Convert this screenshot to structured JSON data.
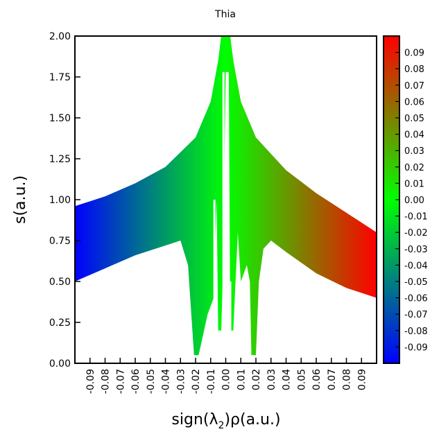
{
  "chart_data": {
    "type": "scatter",
    "title": "Thia",
    "xlabel_prefix": "sign(λ",
    "xlabel_sub": "2",
    "xlabel_suffix": ")ρ(a.u.)",
    "ylabel": "s(a.u.)",
    "xlim": [
      -0.1,
      0.1
    ],
    "ylim": [
      0.0,
      2.0
    ],
    "xticks": [
      "-0.09",
      "-0.08",
      "-0.07",
      "-0.06",
      "-0.05",
      "-0.04",
      "-0.03",
      "-0.02",
      "-0.01",
      "0.00",
      "0.01",
      "0.02",
      "0.03",
      "0.04",
      "0.05",
      "0.06",
      "0.07",
      "0.08",
      "0.09"
    ],
    "yticks": [
      "0.00",
      "0.25",
      "0.50",
      "0.75",
      "1.00",
      "1.25",
      "1.50",
      "1.75",
      "2.00"
    ],
    "colorbar": {
      "range": [
        -0.1,
        0.1
      ],
      "colors": {
        "low": "#0000ff",
        "mid": "#00ff00",
        "high": "#ff0000"
      },
      "ticks": [
        "0.09",
        "0.08",
        "0.07",
        "0.06",
        "0.05",
        "0.04",
        "0.03",
        "0.02",
        "0.01",
        "0.00",
        "-0.01",
        "-0.02",
        "-0.03",
        "-0.04",
        "-0.05",
        "-0.06",
        "-0.07",
        "-0.08",
        "-0.09"
      ]
    },
    "region": {
      "upper_envelope": [
        [
          -0.1,
          0.96
        ],
        [
          -0.08,
          1.02
        ],
        [
          -0.06,
          1.1
        ],
        [
          -0.04,
          1.2
        ],
        [
          -0.02,
          1.38
        ],
        [
          -0.01,
          1.6
        ],
        [
          -0.005,
          1.85
        ],
        [
          -0.003,
          2.0
        ],
        [
          0.003,
          2.0
        ],
        [
          0.005,
          1.85
        ],
        [
          0.01,
          1.6
        ],
        [
          0.02,
          1.38
        ],
        [
          0.04,
          1.18
        ],
        [
          0.06,
          1.04
        ],
        [
          0.08,
          0.92
        ],
        [
          0.1,
          0.8
        ]
      ],
      "lower_envelope_right": [
        [
          0.1,
          0.4
        ],
        [
          0.08,
          0.46
        ],
        [
          0.06,
          0.55
        ],
        [
          0.04,
          0.68
        ],
        [
          0.03,
          0.75
        ],
        [
          0.025,
          0.7
        ],
        [
          0.022,
          0.5
        ],
        [
          0.02,
          0.05
        ],
        [
          0.017,
          0.05
        ],
        [
          0.016,
          0.5
        ],
        [
          0.014,
          0.6
        ],
        [
          0.01,
          0.5
        ],
        [
          0.008,
          0.8
        ],
        [
          0.005,
          0.2
        ],
        [
          0.003,
          0.2
        ],
        [
          0.002,
          1.78
        ],
        [
          0.0,
          1.78
        ],
        [
          -0.002,
          0.5
        ],
        [
          -0.003,
          0.2
        ],
        [
          -0.005,
          0.2
        ],
        [
          -0.006,
          1.0
        ],
        [
          -0.008,
          0.4
        ],
        [
          -0.012,
          0.3
        ],
        [
          -0.018,
          0.05
        ],
        [
          -0.021,
          0.05
        ],
        [
          -0.025,
          0.6
        ],
        [
          -0.03,
          0.75
        ],
        [
          -0.04,
          0.72
        ],
        [
          -0.06,
          0.66
        ],
        [
          -0.08,
          0.58
        ],
        [
          -0.1,
          0.5
        ]
      ],
      "gap_lines": [
        [
          -0.0075,
          0.2,
          1.0
        ],
        [
          -0.0015,
          0.2,
          1.78
        ],
        [
          0.003,
          0.2,
          0.5
        ]
      ]
    }
  }
}
